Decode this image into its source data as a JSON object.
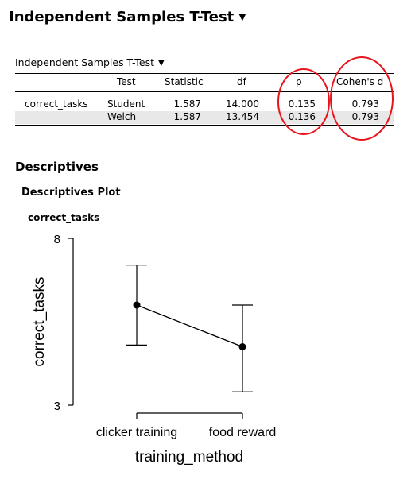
{
  "header": {
    "title": "Independent Samples T-Test"
  },
  "ttest": {
    "title": "Independent Samples T-Test",
    "columns": [
      "",
      "Test",
      "Statistic",
      "df",
      "p",
      "Cohen's d"
    ],
    "rows": [
      {
        "variable": "correct_tasks",
        "test": "Student",
        "statistic": "1.587",
        "df": "14.000",
        "p": "0.135",
        "d": "0.793"
      },
      {
        "variable": "",
        "test": "Welch",
        "statistic": "1.587",
        "df": "13.454",
        "p": "0.136",
        "d": "0.793"
      }
    ],
    "highlight_color": "#e8141c"
  },
  "descriptives": {
    "title": "Descriptives",
    "plot_title": "Descriptives Plot",
    "variable": "correct_tasks"
  },
  "chart_data": {
    "type": "line",
    "categories": [
      "clicker training",
      "food reward"
    ],
    "means": [
      6.0,
      4.75
    ],
    "ci_lower": [
      4.8,
      3.4
    ],
    "ci_upper": [
      7.2,
      6.0
    ],
    "xlabel": "training_method",
    "ylabel": "correct_tasks",
    "ylim": [
      3,
      8
    ],
    "yticks": [
      "3",
      "8"
    ]
  }
}
